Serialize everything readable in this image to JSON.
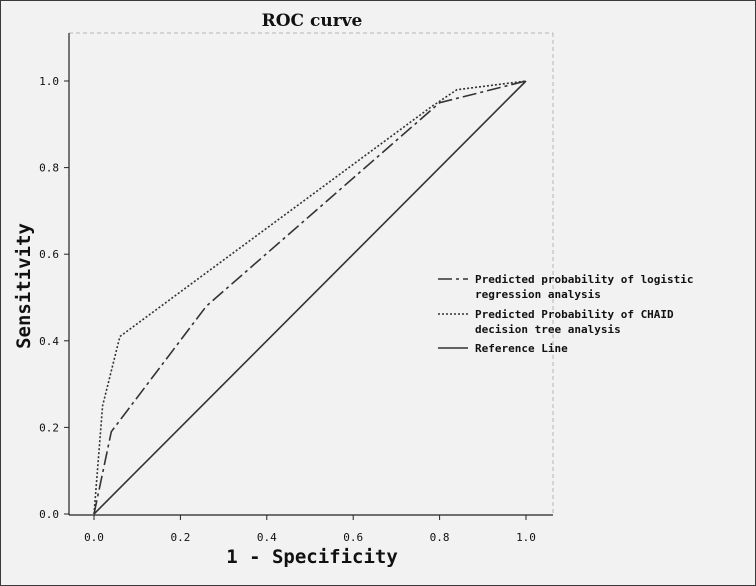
{
  "chart_data": {
    "type": "line",
    "title": "ROC curve",
    "xlabel": "1 - Specificity",
    "ylabel": "Sensitivity",
    "xlim": [
      0,
      1.0
    ],
    "ylim": [
      0,
      1.0
    ],
    "xticks": [
      "0.0",
      "0.2",
      "0.4",
      "0.6",
      "0.8",
      "1.0"
    ],
    "yticks": [
      "0.0",
      "0.2",
      "0.4",
      "0.6",
      "0.8",
      "1.0"
    ],
    "grid": false,
    "legend_position": "right",
    "series": [
      {
        "name": "Predicted probability of logistic regression analysis",
        "legend_lines": [
          "Predicted probability of logistic",
          "regression analysis"
        ],
        "style": "dash-dot",
        "color": "#333333",
        "x": [
          0.0,
          0.04,
          0.26,
          0.8,
          1.0
        ],
        "y": [
          0.0,
          0.19,
          0.48,
          0.95,
          1.0
        ]
      },
      {
        "name": "Predicted Probability of CHAID decision tree analysis",
        "legend_lines": [
          "Predicted Probability of CHAID",
          "decision tree analysis"
        ],
        "style": "dotted",
        "color": "#333333",
        "x": [
          0.0,
          0.02,
          0.06,
          0.78,
          0.84,
          1.0
        ],
        "y": [
          0.0,
          0.25,
          0.41,
          0.94,
          0.98,
          1.0
        ]
      },
      {
        "name": "Reference Line",
        "legend_lines": [
          "Reference Line"
        ],
        "style": "solid",
        "color": "#333333",
        "x": [
          0.0,
          1.0
        ],
        "y": [
          0.0,
          1.0
        ]
      }
    ]
  }
}
